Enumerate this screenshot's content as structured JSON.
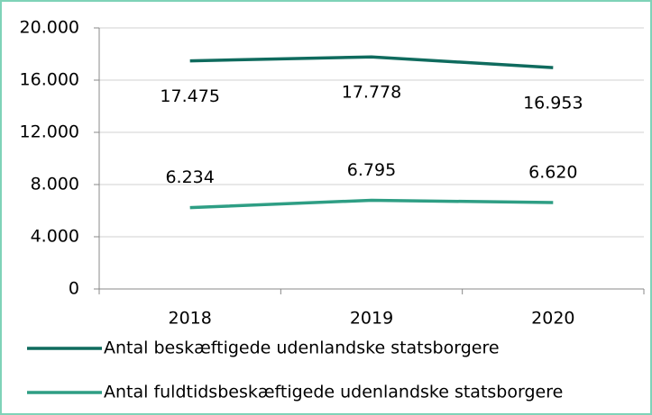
{
  "chart_data": {
    "type": "line",
    "categories": [
      "2018",
      "2019",
      "2020"
    ],
    "series": [
      {
        "name": "Antal beskæftigede udenlandske statsborgere",
        "color": "#0f6b5e",
        "values": [
          17475,
          17778,
          16953
        ],
        "value_labels": [
          "17.475",
          "17.778",
          "16.953"
        ]
      },
      {
        "name": "Antal fuldtidsbeskæftigede udenlandske statsborgere",
        "color": "#2e9e84",
        "values": [
          6234,
          6795,
          6620
        ],
        "value_labels": [
          "6.234",
          "6.795",
          "6.620"
        ]
      }
    ],
    "ylim": [
      0,
      20000
    ],
    "yticks": [
      {
        "value": 0,
        "label": "0"
      },
      {
        "value": 4000,
        "label": "4.000"
      },
      {
        "value": 8000,
        "label": "8.000"
      },
      {
        "value": 12000,
        "label": "12.000"
      },
      {
        "value": 16000,
        "label": "16.000"
      },
      {
        "value": 20000,
        "label": "20.000"
      }
    ],
    "grid": true,
    "legend": "bottom"
  }
}
